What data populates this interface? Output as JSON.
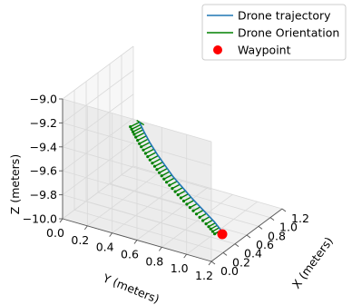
{
  "chart_data": {
    "type": "line",
    "projection": "3d",
    "axes": {
      "x": {
        "label": "X (meters)",
        "lim": [
          0.0,
          1.2
        ],
        "ticks": [
          0.0,
          0.2,
          0.4,
          0.6,
          0.8,
          1.0,
          1.2
        ],
        "tick_labels": [
          "0.0",
          "0.2",
          "0.4",
          "0.6",
          "0.8",
          "1.0",
          "1.2"
        ]
      },
      "y": {
        "label": "Y (meters)",
        "lim": [
          0.0,
          1.2
        ],
        "ticks": [
          0.0,
          0.2,
          0.4,
          0.6,
          0.8,
          1.0,
          1.2
        ],
        "tick_labels": [
          "0.0",
          "0.2",
          "0.4",
          "0.6",
          "0.8",
          "1.0",
          "1.2"
        ]
      },
      "z": {
        "label": "Z (meters)",
        "lim": [
          -10.0,
          -9.0
        ],
        "ticks": [
          -10.0,
          -9.8,
          -9.6,
          -9.4,
          -9.2,
          -9.0
        ],
        "tick_labels": [
          "−10.0",
          "−9.8",
          "−9.6",
          "−9.4",
          "−9.2",
          "−9.0"
        ]
      }
    },
    "grid": true,
    "legend": {
      "placement": "top-right",
      "entries": [
        {
          "label": "Drone trajectory",
          "color": "#1f77b4",
          "marker": "line"
        },
        {
          "label": "Drone Orientation",
          "color": "#008000",
          "marker": "line"
        },
        {
          "label": "Waypoint",
          "color": "#ff0000",
          "marker": "circle"
        }
      ]
    },
    "series": [
      {
        "name": "Drone trajectory",
        "color": "#1f77b4",
        "points": [
          {
            "x": 0.02,
            "y": 0.61,
            "z": -9.02
          },
          {
            "x": 0.05,
            "y": 0.63,
            "z": -9.1
          },
          {
            "x": 0.09,
            "y": 0.66,
            "z": -9.2
          },
          {
            "x": 0.13,
            "y": 0.7,
            "z": -9.3
          },
          {
            "x": 0.18,
            "y": 0.74,
            "z": -9.4
          },
          {
            "x": 0.23,
            "y": 0.78,
            "z": -9.5
          },
          {
            "x": 0.29,
            "y": 0.83,
            "z": -9.6
          },
          {
            "x": 0.35,
            "y": 0.88,
            "z": -9.7
          },
          {
            "x": 0.41,
            "y": 0.94,
            "z": -9.8
          },
          {
            "x": 0.47,
            "y": 1.0,
            "z": -9.9
          },
          {
            "x": 0.5,
            "y": 1.04,
            "z": -9.97
          }
        ]
      },
      {
        "name": "Drone Orientation",
        "color": "#008000",
        "quiver_count": 36
      }
    ],
    "waypoint": {
      "name": "Waypoint",
      "x": 0.5,
      "y": 1.05,
      "z": -10.0,
      "color": "#ff0000"
    }
  }
}
